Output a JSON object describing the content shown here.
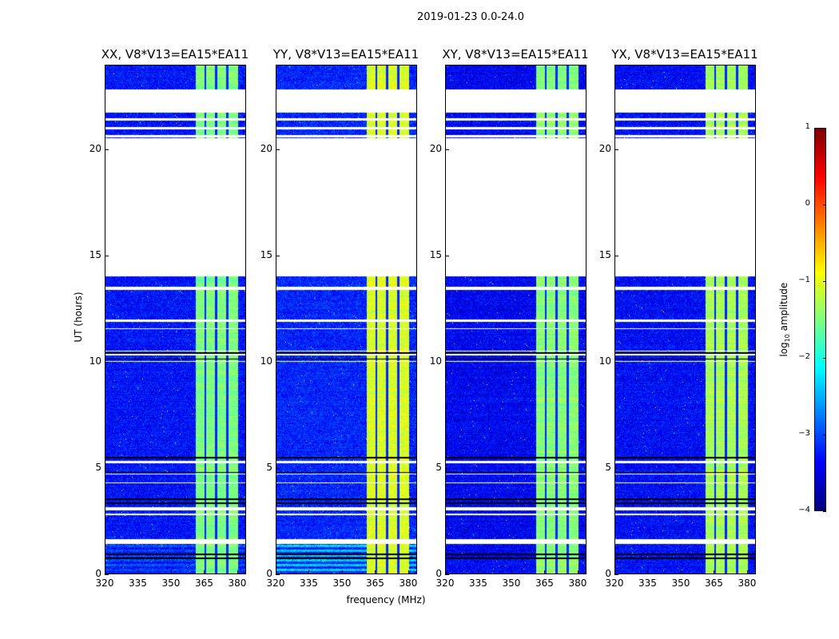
{
  "chart_data": {
    "type": "heatmap",
    "title": "2019-01-23 0.0-24.0",
    "xlabel": "frequency (MHz)",
    "ylabel": "UT (hours)",
    "xlim": [
      320,
      384
    ],
    "ylim": [
      0,
      24
    ],
    "xticks": [
      320,
      335,
      350,
      365,
      380
    ],
    "yticks": [
      0,
      5,
      10,
      15,
      20
    ],
    "colorbar": {
      "label_prefix": "log",
      "label_sub": "10",
      "label_suffix": " amplitude",
      "range": [
        -4,
        1
      ],
      "ticks": [
        1,
        0,
        -1,
        -2,
        -3,
        -4
      ],
      "tick_labels": [
        "1",
        "0",
        "−1",
        "−2",
        "−3",
        "−4"
      ],
      "colormap": "jet"
    },
    "panels": [
      {
        "title": "XX, V8*V13=EA15*EA11",
        "background_level": -3.3,
        "band_level": -1.5,
        "low_band_level": -3.0
      },
      {
        "title": "YY, V8*V13=EA15*EA11",
        "background_level": -3.2,
        "band_level": -1.05,
        "low_band_level": -2.4
      },
      {
        "title": "XY, V8*V13=EA15*EA11",
        "background_level": -3.4,
        "band_level": -1.45,
        "low_band_level": -3.4
      },
      {
        "title": "YX, V8*V13=EA15*EA11",
        "background_level": -3.35,
        "band_level": -1.3,
        "low_band_level": -3.3
      }
    ],
    "bright_band_mhz": [
      360.5,
      380
    ],
    "band_gaps_mhz": [
      365,
      370,
      375
    ],
    "flagged_hours": [
      [
        21.8,
        22.9
      ],
      [
        21.42,
        21.55
      ],
      [
        21.0,
        21.12
      ],
      [
        20.62,
        20.75
      ],
      [
        14.1,
        20.6
      ],
      [
        13.45,
        13.6
      ],
      [
        11.95,
        12.05
      ],
      [
        11.6,
        11.65
      ],
      [
        10.55,
        10.6
      ],
      [
        10.38,
        10.45
      ],
      [
        10.05,
        10.1
      ],
      [
        5.3,
        5.4
      ],
      [
        4.75,
        4.8
      ],
      [
        4.35,
        4.4
      ],
      [
        3.05,
        3.2
      ],
      [
        2.85,
        2.9
      ],
      [
        1.5,
        1.7
      ]
    ],
    "dark_rows_hours": [
      10.48,
      10.2,
      5.55,
      4.85,
      3.6,
      3.4,
      1.0,
      0.8
    ]
  }
}
